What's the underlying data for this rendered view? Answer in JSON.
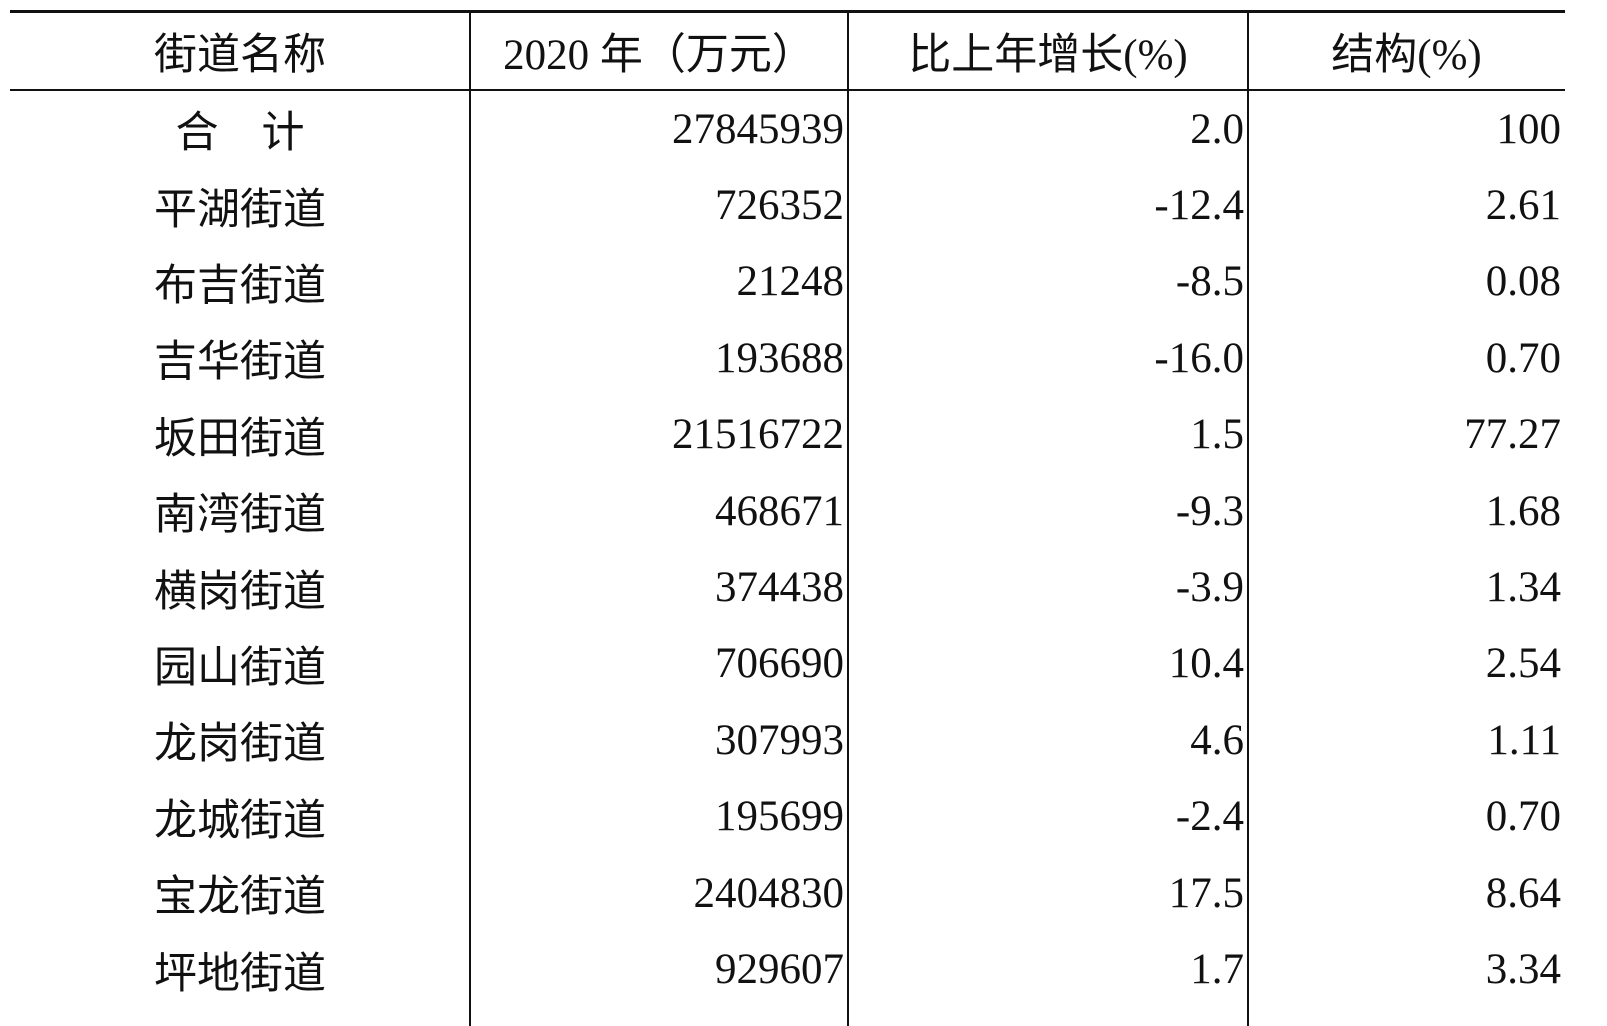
{
  "table": {
    "header": [
      "街道名称",
      "2020 年（万元）",
      "比上年增长(%)",
      "结构(%)"
    ],
    "rows": [
      [
        "合　计",
        "27845939",
        "2.0",
        "100"
      ],
      [
        "平湖街道",
        "726352",
        "-12.4",
        "2.61"
      ],
      [
        "布吉街道",
        "21248",
        "-8.5",
        "0.08"
      ],
      [
        "吉华街道",
        "193688",
        "-16.0",
        "0.70"
      ],
      [
        "坂田街道",
        "21516722",
        "1.5",
        "77.27"
      ],
      [
        "南湾街道",
        "468671",
        "-9.3",
        "1.68"
      ],
      [
        "横岗街道",
        "374438",
        "-3.9",
        "1.34"
      ],
      [
        "园山街道",
        "706690",
        "10.4",
        "2.54"
      ],
      [
        "龙岗街道",
        "307993",
        "4.6",
        "1.11"
      ],
      [
        "龙城街道",
        "195699",
        "-2.4",
        "0.70"
      ],
      [
        "宝龙街道",
        "2404830",
        "17.5",
        "8.64"
      ],
      [
        "坪地街道",
        "929607",
        "1.7",
        "3.34"
      ]
    ]
  }
}
